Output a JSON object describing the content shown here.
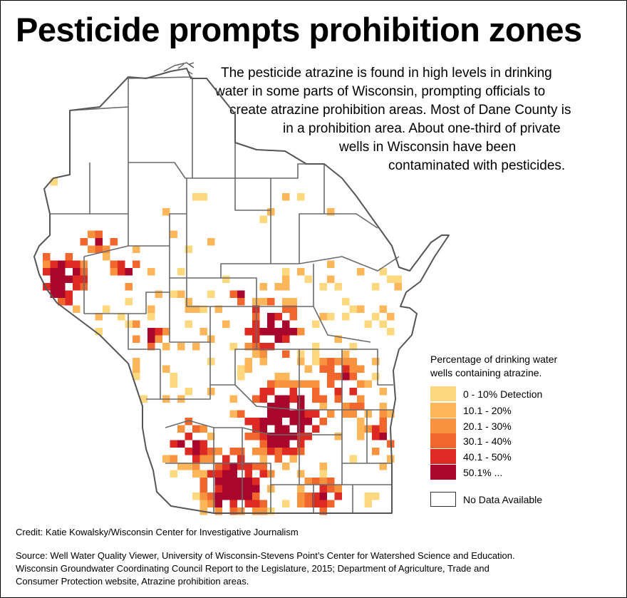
{
  "title": "Pesticide prompts prohibition zones",
  "intro_lines": [
    "The pesticide atrazine is found in high levels in drinking",
    "water in some parts of Wisconsin, prompting officials to",
    "create atrazine prohibition areas. Most of Dane County is",
    "in a prohibition area. About one-third of private",
    "wells in Wisconsin have been",
    "contaminated with pesticides."
  ],
  "legend": {
    "title_lines": [
      "Percentage of drinking water",
      "wells containing atrazine."
    ],
    "items": [
      {
        "label": "0 - 10% Detection",
        "color": "#fdd87e"
      },
      {
        "label": "10.1 - 20%",
        "color": "#fdb75a"
      },
      {
        "label": "20.1 - 30%",
        "color": "#f8923f"
      },
      {
        "label": "30.1 - 40%",
        "color": "#f0662d"
      },
      {
        "label": "40.1 - 50%",
        "color": "#dd2a22"
      },
      {
        "label": "50.1% ...",
        "color": "#a8062c"
      }
    ],
    "no_data": {
      "label": "No Data Available",
      "color": "#ffffff"
    }
  },
  "credit": "Credit: Katie Kowalsky/Wisconsin Center for Investigative Journalism",
  "source_lines": [
    "Source: Well Water Quality Viewer, University of Wisconsin-Stevens Point’s Center for Watershed Science and Education.",
    "Wisconsin Groundwater Coordinating Council Report to the Legislature, 2015; Department of Agriculture, Trade and",
    "Consumer Protection website, Atrazine prohibition areas."
  ],
  "map": {
    "state_outline_color": "#555555",
    "county_line_color": "#6a6a6a"
  }
}
